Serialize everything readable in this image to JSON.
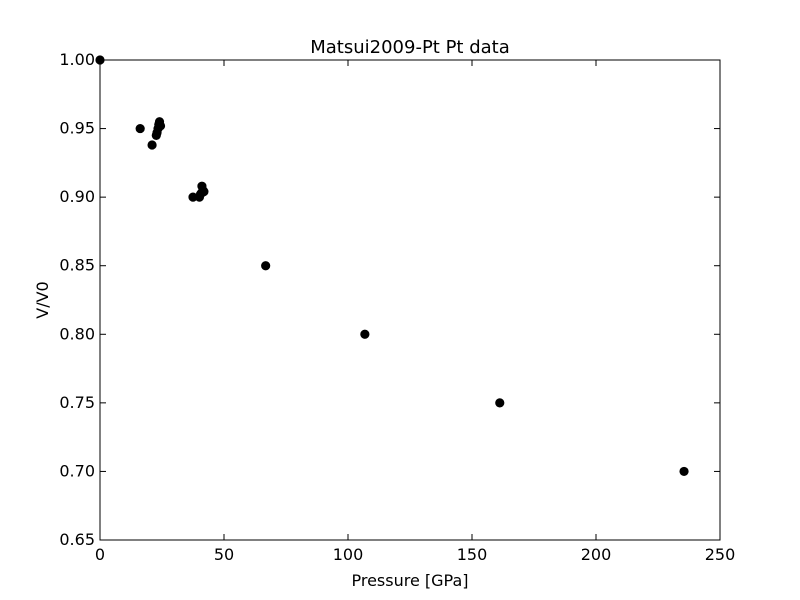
{
  "chart_data": {
    "type": "scatter",
    "title": "Matsui2009-Pt Pt data",
    "xlabel": "Pressure [GPa]",
    "ylabel": "V/V0",
    "xlim": [
      0,
      250
    ],
    "ylim": [
      0.65,
      1.0
    ],
    "x_ticks": [
      0,
      50,
      100,
      150,
      200,
      250
    ],
    "y_ticks": [
      0.65,
      0.7,
      0.75,
      0.8,
      0.85,
      0.9,
      0.95,
      1.0
    ],
    "x_tick_labels": [
      "0",
      "50",
      "100",
      "150",
      "200",
      "250"
    ],
    "y_tick_labels": [
      "0.65",
      "0.70",
      "0.75",
      "0.80",
      "0.85",
      "0.90",
      "0.95",
      "1.00"
    ],
    "grid": false,
    "legend": "none",
    "marker_color": "#000000",
    "points": [
      {
        "x": 0.0,
        "y": 1.0
      },
      {
        "x": 16.2,
        "y": 0.95
      },
      {
        "x": 21.0,
        "y": 0.938
      },
      {
        "x": 22.7,
        "y": 0.945
      },
      {
        "x": 23.0,
        "y": 0.947
      },
      {
        "x": 23.4,
        "y": 0.95
      },
      {
        "x": 23.7,
        "y": 0.953
      },
      {
        "x": 24.0,
        "y": 0.955
      },
      {
        "x": 24.4,
        "y": 0.952
      },
      {
        "x": 37.5,
        "y": 0.9
      },
      {
        "x": 40.1,
        "y": 0.9
      },
      {
        "x": 40.5,
        "y": 0.902
      },
      {
        "x": 40.9,
        "y": 0.903
      },
      {
        "x": 41.1,
        "y": 0.908
      },
      {
        "x": 41.5,
        "y": 0.905
      },
      {
        "x": 41.9,
        "y": 0.904
      },
      {
        "x": 66.8,
        "y": 0.85
      },
      {
        "x": 106.8,
        "y": 0.8
      },
      {
        "x": 161.2,
        "y": 0.75
      },
      {
        "x": 235.5,
        "y": 0.7
      }
    ]
  }
}
